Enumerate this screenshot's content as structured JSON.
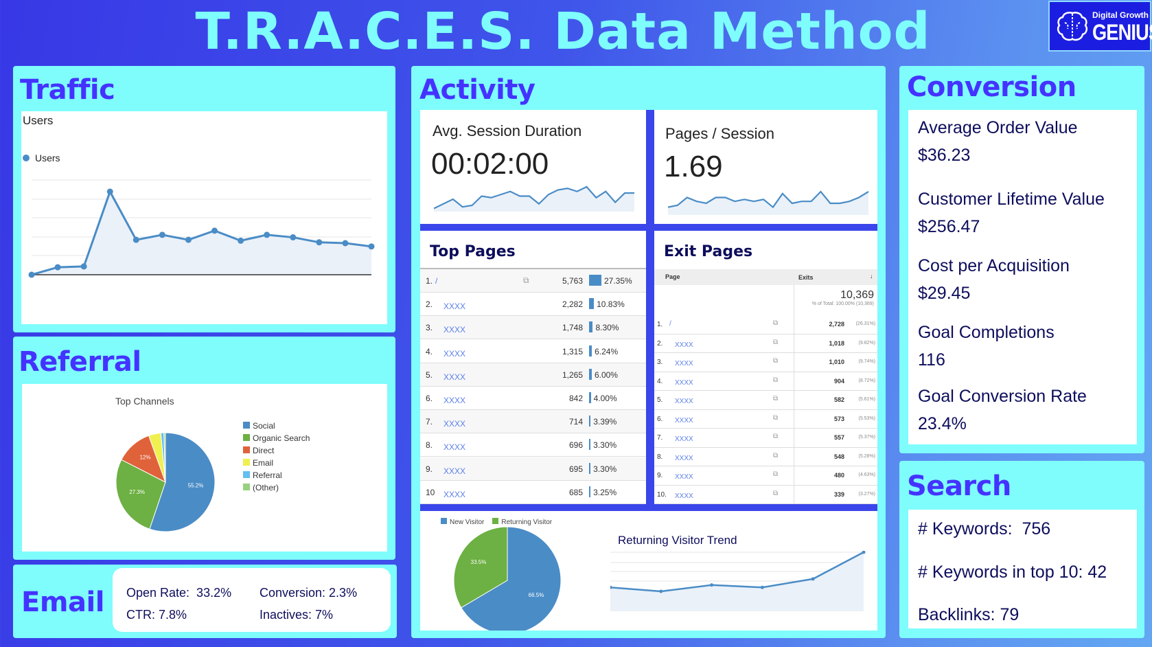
{
  "header": {
    "title": "T.R.A.C.E.S. Data Method",
    "logo_line1": "Digital Growth",
    "logo_line2": "GENIUS"
  },
  "colors": {
    "panel": "#7ffcfc",
    "heading": "#4433ff",
    "series_blue": "#4a8cc6",
    "series_green": "#6db043",
    "orange": "#e0623a",
    "yellow": "#f0ef50",
    "light_blue": "#63c0f0",
    "other_green": "#98d17f"
  },
  "traffic": {
    "heading": "Traffic",
    "chart_title": "Users",
    "legend": "Users",
    "chart_data": {
      "type": "line",
      "series": [
        {
          "name": "Users",
          "values": [
            0,
            9,
            10,
            100,
            42,
            48,
            42,
            53,
            41,
            48,
            45,
            39,
            38,
            34
          ]
        }
      ]
    }
  },
  "referral": {
    "heading": "Referral",
    "chart_data": {
      "type": "pie",
      "title": "Top Channels",
      "slices": [
        {
          "label": "Social",
          "value": 55.2,
          "display": "55.2%",
          "color": "#4a8cc6"
        },
        {
          "label": "Organic Search",
          "value": 27.3,
          "display": "27.3%",
          "color": "#6db043"
        },
        {
          "label": "Direct",
          "value": 12,
          "display": "12%",
          "color": "#e0623a"
        },
        {
          "label": "Email",
          "value": 4,
          "display": "",
          "color": "#f0ef50"
        },
        {
          "label": "Referral",
          "value": 1,
          "display": "",
          "color": "#63c0f0"
        },
        {
          "label": "(Other)",
          "value": 0.5,
          "display": "",
          "color": "#98d17f"
        }
      ]
    }
  },
  "email": {
    "heading": "Email",
    "open_rate": "Open Rate:  33.2%",
    "conversion": "Conversion: 2.3%",
    "ctr": "CTR: 7.8%",
    "inactives": "Inactives: 7%"
  },
  "activity": {
    "heading": "Activity",
    "avg_session": {
      "label": "Avg. Session Duration",
      "value": "00:02:00",
      "spark": [
        2,
        5,
        8,
        3,
        4,
        10,
        9,
        11,
        13,
        10,
        10,
        5,
        11,
        14,
        15,
        13,
        16,
        9,
        13,
        6,
        12,
        12
      ]
    },
    "pages_session": {
      "label": "Pages / Session",
      "value": "1.69",
      "spark": [
        4,
        5,
        9,
        7,
        6,
        9,
        9,
        7,
        8,
        7,
        8,
        4,
        11,
        6,
        7,
        7,
        12,
        6,
        6,
        7,
        9,
        12
      ]
    },
    "top_pages": {
      "title": "Top Pages",
      "rows": [
        {
          "rank": "1.",
          "page": "/",
          "views": "5,763",
          "pct": "27.35%",
          "share": 27.35
        },
        {
          "rank": "2.",
          "page": "XXXX",
          "views": "2,282",
          "pct": "10.83%",
          "share": 10.83
        },
        {
          "rank": "3.",
          "page": "XXXX",
          "views": "1,748",
          "pct": "8.30%",
          "share": 8.3
        },
        {
          "rank": "4.",
          "page": "XXXX",
          "views": "1,315",
          "pct": "6.24%",
          "share": 6.24
        },
        {
          "rank": "5.",
          "page": "XXXX",
          "views": "1,265",
          "pct": "6.00%",
          "share": 6.0
        },
        {
          "rank": "6.",
          "page": "XXXX",
          "views": "842",
          "pct": "4.00%",
          "share": 4.0
        },
        {
          "rank": "7.",
          "page": "XXXX",
          "views": "714",
          "pct": "3.39%",
          "share": 3.39
        },
        {
          "rank": "8.",
          "page": "XXXX",
          "views": "696",
          "pct": "3.30%",
          "share": 3.3
        },
        {
          "rank": "9.",
          "page": "XXXX",
          "views": "695",
          "pct": "3.30%",
          "share": 3.3
        },
        {
          "rank": "10",
          "page": "XXXX",
          "views": "685",
          "pct": "3.25%",
          "share": 3.25
        }
      ]
    },
    "exit_pages": {
      "title": "Exit Pages",
      "col_page": "Page",
      "col_exits": "Exits",
      "total": "10,369",
      "total_note": "% of Total: 100.00% (10,369)",
      "rows": [
        {
          "rank": "1.",
          "page": "/",
          "exits": "2,728",
          "pct": "(26.31%)"
        },
        {
          "rank": "2.",
          "page": "XXXX",
          "exits": "1,018",
          "pct": "(9.82%)"
        },
        {
          "rank": "3.",
          "page": "XXXX",
          "exits": "1,010",
          "pct": "(9.74%)"
        },
        {
          "rank": "4.",
          "page": "XXXX",
          "exits": "904",
          "pct": "(8.72%)"
        },
        {
          "rank": "5.",
          "page": "XXXX",
          "exits": "582",
          "pct": "(5.61%)"
        },
        {
          "rank": "6.",
          "page": "XXXX",
          "exits": "573",
          "pct": "(5.53%)"
        },
        {
          "rank": "7.",
          "page": "XXXX",
          "exits": "557",
          "pct": "(5.37%)"
        },
        {
          "rank": "8.",
          "page": "XXXX",
          "exits": "548",
          "pct": "(5.28%)"
        },
        {
          "rank": "9.",
          "page": "XXXX",
          "exits": "480",
          "pct": "(4.63%)"
        },
        {
          "rank": "10.",
          "page": "XXXX",
          "exits": "339",
          "pct": "(3.27%)"
        }
      ]
    },
    "visitors": {
      "chart_data": {
        "type": "pie",
        "slices": [
          {
            "label": "New Visitor",
            "value": 66.5,
            "display": "66.5%",
            "color": "#4a8cc6"
          },
          {
            "label": "Returning Visitor",
            "value": 33.5,
            "display": "33.5%",
            "color": "#6db043"
          }
        ]
      }
    },
    "returning_trend": {
      "chart_data": {
        "type": "line",
        "title": "Returning Visitor Trend",
        "values": [
          102,
          85,
          112,
          102,
          138,
          252
        ]
      }
    }
  },
  "conversion": {
    "heading": "Conversion",
    "items": [
      {
        "label": "Average Order Value",
        "value": "$36.23"
      },
      {
        "label": "Customer Lifetime Value",
        "value": "$256.47"
      },
      {
        "label": "Cost per Acquisition",
        "value": "$29.45"
      },
      {
        "label": "Goal Completions",
        "value": "116"
      },
      {
        "label": "Goal Conversion Rate",
        "value": "23.4%"
      }
    ]
  },
  "search": {
    "heading": "Search",
    "keywords": "# Keywords:  756",
    "top10": "# Keywords in top 10: 42",
    "backlinks": "Backlinks: 79"
  }
}
